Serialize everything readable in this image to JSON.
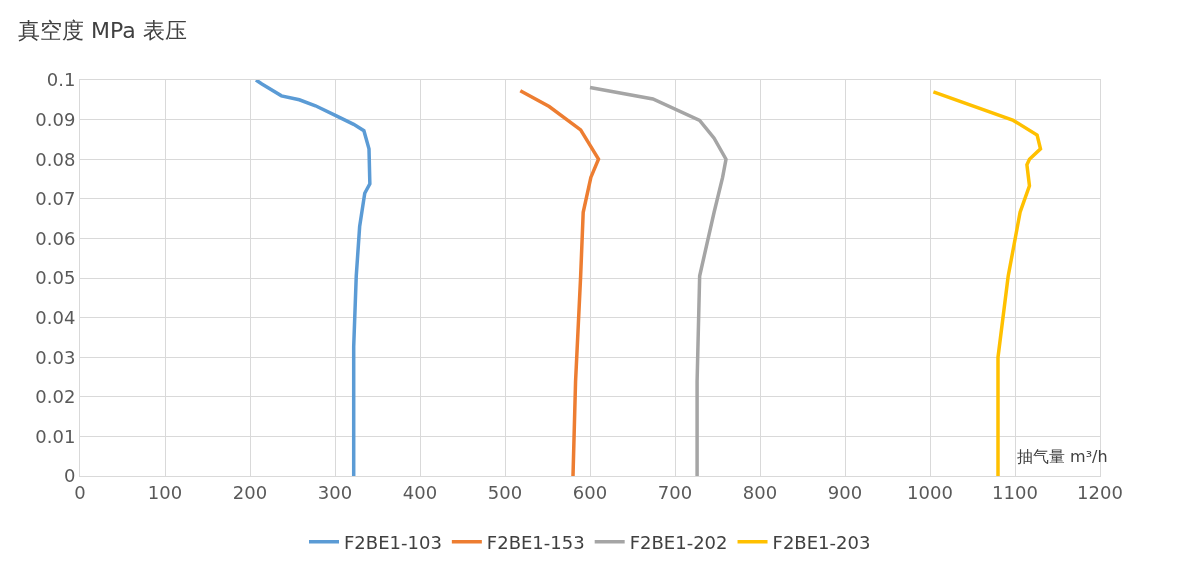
{
  "chart_data": {
    "type": "line",
    "title": "真空度 MPa 表压",
    "xlabel": "抽气量 m³/h",
    "xlim": [
      0,
      1200
    ],
    "xticks": [
      0,
      100,
      200,
      300,
      400,
      500,
      600,
      700,
      800,
      900,
      1000,
      1100,
      1200
    ],
    "ylim": [
      0,
      0.1
    ],
    "yticks": [
      0,
      0.01,
      0.02,
      0.03,
      0.04,
      0.05,
      0.06,
      0.07,
      0.08,
      0.09,
      0.1
    ],
    "grid": true,
    "legend": "bottom",
    "marker": "none",
    "line_style": "solid",
    "series": [
      {
        "name": "F2BE1-103",
        "color": "#5b9bd5",
        "x": [
          207,
          214,
          237,
          258,
          277,
          301,
          322,
          334,
          340,
          341,
          335,
          329,
          325,
          322,
          322
        ],
        "values": [
          0.1,
          0.099,
          0.096,
          0.095,
          0.0935,
          0.091,
          0.0888,
          0.0872,
          0.0826,
          0.0738,
          0.0714,
          0.063,
          0.0505,
          0.0326,
          0
        ]
      },
      {
        "name": "F2BE1-153",
        "color": "#ed7d31",
        "x": [
          518,
          552,
          589,
          610,
          601,
          592,
          589,
          583,
          580
        ],
        "values": [
          0.0973,
          0.0933,
          0.0874,
          0.08,
          0.0754,
          0.0666,
          0.0505,
          0.0238,
          0
        ]
      },
      {
        "name": "F2BE1-202",
        "color": "#a5a5a5",
        "x": [
          600,
          674,
          729,
          746,
          760,
          756,
          746,
          729,
          726,
          726
        ],
        "values": [
          0.0981,
          0.0952,
          0.0898,
          0.0853,
          0.08,
          0.0754,
          0.0666,
          0.0505,
          0.0238,
          0
        ]
      },
      {
        "name": "F2BE1-203",
        "color": "#ffc000",
        "x": [
          1004,
          1098,
          1126,
          1130,
          1117,
          1114,
          1117,
          1106,
          1092,
          1080,
          1080
        ],
        "values": [
          0.097,
          0.0898,
          0.0861,
          0.0826,
          0.08,
          0.0786,
          0.0733,
          0.0666,
          0.0505,
          0.03,
          0
        ]
      }
    ]
  }
}
